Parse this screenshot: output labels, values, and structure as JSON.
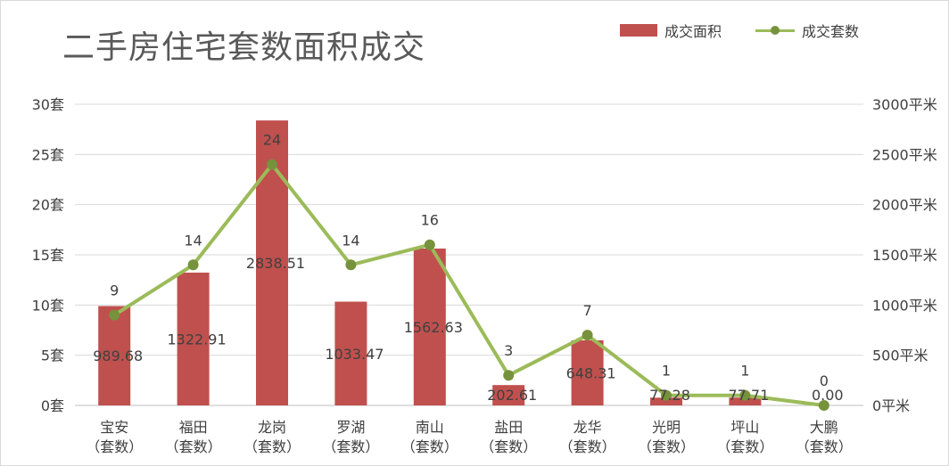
{
  "title": "二手房住宅套数面积成交",
  "legend": {
    "bar_label": "成交面积",
    "line_label": "成交套数"
  },
  "colors": {
    "bar": "#c0504d",
    "line": "#9bbb59",
    "marker": "#76923c",
    "grid": "#d9d9d9"
  },
  "chart_data": {
    "type": "bar",
    "title": "二手房住宅套数面积成交",
    "categories": [
      [
        "宝安",
        "（套数）"
      ],
      [
        "福田",
        "（套数）"
      ],
      [
        "龙岗",
        "（套数）"
      ],
      [
        "罗湖",
        "（套数）"
      ],
      [
        "南山",
        "（套数）"
      ],
      [
        "盐田",
        "（套数）"
      ],
      [
        "龙华",
        "（套数）"
      ],
      [
        "光明",
        "（套数）"
      ],
      [
        "坪山",
        "（套数）"
      ],
      [
        "大鹏",
        "（套数）"
      ]
    ],
    "series": [
      {
        "name": "成交面积",
        "type": "bar",
        "axis": "right",
        "values": [
          989.68,
          1322.91,
          2838.51,
          1033.47,
          1562.63,
          202.61,
          648.31,
          77.28,
          77.71,
          0.0
        ],
        "labels": [
          "989.68",
          "1322.91",
          "2838.51",
          "1033.47",
          "1562.63",
          "202.61",
          "648.31",
          "77.28",
          "77.71",
          "0.00"
        ]
      },
      {
        "name": "成交套数",
        "type": "line",
        "axis": "left",
        "values": [
          9,
          14,
          24,
          14,
          16,
          3,
          7,
          1,
          1,
          0
        ],
        "labels": [
          "9",
          "14",
          "24",
          "14",
          "16",
          "3",
          "7",
          "1",
          "1",
          "0"
        ]
      }
    ],
    "y_left": {
      "ylim": [
        0,
        30
      ],
      "ticks": [
        0,
        5,
        10,
        15,
        20,
        25,
        30
      ],
      "tick_labels": [
        "0套",
        "5套",
        "10套",
        "15套",
        "20套",
        "25套",
        "30套"
      ]
    },
    "y_right": {
      "ylim": [
        0,
        3000
      ],
      "ticks": [
        0,
        500,
        1000,
        1500,
        2000,
        2500,
        3000
      ],
      "tick_labels": [
        "0平米",
        "500平米",
        "1000平米",
        "1500平米",
        "2000平米",
        "2500平米",
        "3000平米"
      ]
    },
    "grid": true,
    "legend_position": "top-right"
  }
}
